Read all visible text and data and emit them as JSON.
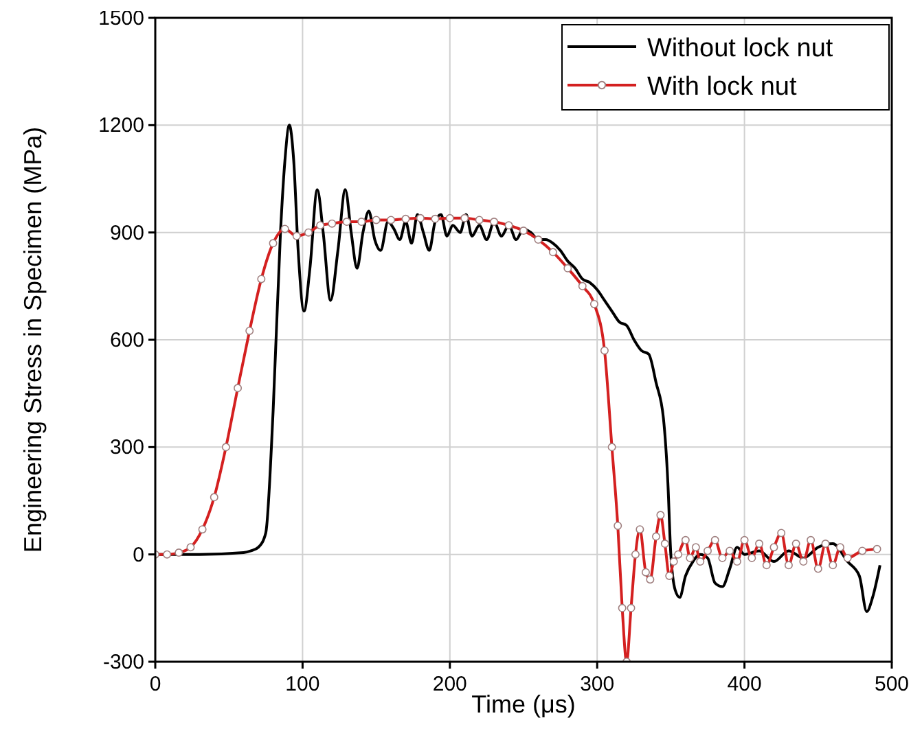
{
  "chart_data": {
    "type": "line",
    "xlabel": "Time (μs)",
    "ylabel": "Engineering Stress in Specimen (MPa)",
    "xlim": [
      0,
      500
    ],
    "ylim": [
      -300,
      1500
    ],
    "xticks": [
      0,
      100,
      200,
      300,
      400,
      500
    ],
    "yticks": [
      -300,
      0,
      300,
      600,
      900,
      1200,
      1500
    ],
    "grid": true,
    "legend": "top right",
    "series": [
      {
        "name": "Without lock nut",
        "color": "#000000",
        "marker": "none",
        "x": [
          0,
          30,
          60,
          65,
          70,
          75,
          80,
          85,
          88,
          91,
          94,
          97,
          101,
          105,
          110,
          114,
          119,
          124,
          129,
          133,
          137,
          141,
          145,
          149,
          153,
          158,
          162,
          166,
          170,
          174,
          178,
          182,
          186,
          190,
          194,
          198,
          202,
          207,
          211,
          215,
          220,
          225,
          230,
          235,
          240,
          245,
          250,
          255,
          260,
          265,
          270,
          275,
          280,
          285,
          290,
          295,
          300,
          305,
          310,
          315,
          320,
          325,
          330,
          335,
          340,
          345,
          348,
          350,
          353,
          356,
          360,
          365,
          370,
          375,
          380,
          385,
          390,
          395,
          400,
          410,
          420,
          430,
          440,
          450,
          460,
          470,
          478,
          483,
          487,
          492
        ],
        "values": [
          0,
          0,
          5,
          10,
          20,
          60,
          400,
          900,
          1100,
          1200,
          1100,
          850,
          680,
          800,
          1020,
          900,
          710,
          850,
          1020,
          900,
          800,
          900,
          960,
          880,
          850,
          930,
          910,
          880,
          930,
          870,
          950,
          900,
          850,
          930,
          950,
          890,
          920,
          900,
          950,
          890,
          920,
          880,
          930,
          890,
          920,
          880,
          910,
          900,
          880,
          880,
          870,
          850,
          820,
          800,
          770,
          760,
          740,
          710,
          680,
          650,
          640,
          600,
          570,
          560,
          480,
          380,
          200,
          0,
          -100,
          -120,
          -60,
          -20,
          0,
          -10,
          -80,
          -90,
          -40,
          20,
          0,
          10,
          -20,
          10,
          -10,
          20,
          30,
          -20,
          -60,
          -160,
          -120,
          -30
        ]
      },
      {
        "name": "With lock nut",
        "color": "#d42020",
        "marker": "circle",
        "x": [
          0,
          8,
          16,
          24,
          32,
          40,
          48,
          56,
          64,
          72,
          80,
          88,
          96,
          104,
          112,
          120,
          130,
          140,
          150,
          160,
          170,
          180,
          190,
          200,
          210,
          220,
          230,
          240,
          250,
          260,
          270,
          280,
          290,
          298,
          305,
          310,
          314,
          317,
          320,
          323,
          326,
          329,
          333,
          336,
          340,
          343,
          346,
          349,
          352,
          355,
          360,
          363,
          367,
          370,
          375,
          380,
          385,
          390,
          395,
          400,
          405,
          410,
          415,
          420,
          425,
          430,
          435,
          440,
          445,
          450,
          455,
          460,
          465,
          470,
          480,
          490
        ],
        "values": [
          0,
          0,
          5,
          20,
          70,
          160,
          300,
          465,
          625,
          770,
          870,
          910,
          890,
          900,
          920,
          925,
          930,
          930,
          935,
          935,
          938,
          940,
          938,
          940,
          940,
          935,
          930,
          920,
          905,
          880,
          845,
          800,
          750,
          700,
          570,
          300,
          80,
          -150,
          -300,
          -150,
          0,
          70,
          -50,
          -70,
          50,
          110,
          30,
          -60,
          -20,
          0,
          40,
          -10,
          20,
          -20,
          10,
          40,
          -10,
          10,
          -20,
          40,
          -10,
          30,
          -30,
          20,
          60,
          -30,
          30,
          -20,
          40,
          -40,
          30,
          -30,
          20,
          -10,
          10,
          15
        ]
      }
    ]
  }
}
